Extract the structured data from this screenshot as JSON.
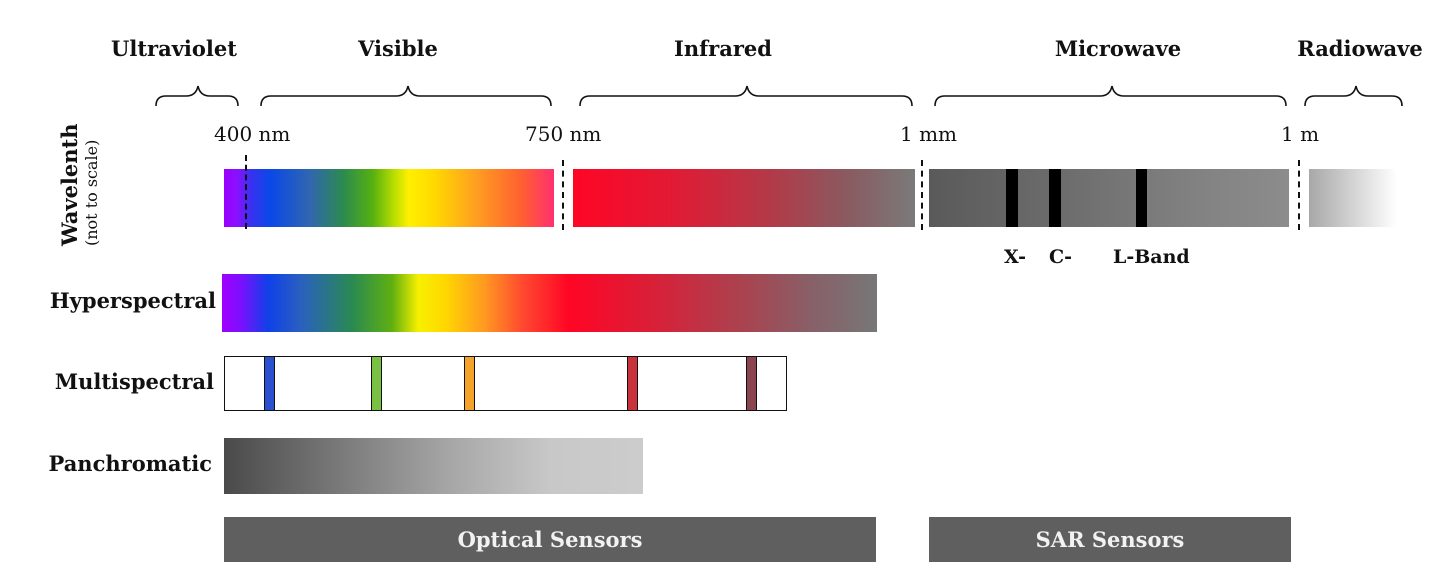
{
  "regions": [
    {
      "name": "Ultraviolet"
    },
    {
      "name": "Visible"
    },
    {
      "name": "Infrared"
    },
    {
      "name": "Microwave"
    },
    {
      "name": "Radiowave"
    }
  ],
  "ticks": [
    {
      "label": "400 nm"
    },
    {
      "label": "750 nm"
    },
    {
      "label": "1 mm"
    },
    {
      "label": "1 m"
    }
  ],
  "axis": {
    "title": "Wavelenth",
    "subtitle": "(not to scale)"
  },
  "sar_bands": {
    "x": "X-",
    "c": "C-",
    "l": "L-Band"
  },
  "rows": {
    "hyperspectral": "Hyperspectral",
    "multispectral": "Multispectral",
    "panchromatic": "Panchromatic"
  },
  "multispectral_band_colors": [
    "#2a4fd0",
    "#7ac043",
    "#f5a22a",
    "#c8333c",
    "#8a4550"
  ],
  "sensors": {
    "optical": "Optical Sensors",
    "sar": "SAR Sensors"
  }
}
